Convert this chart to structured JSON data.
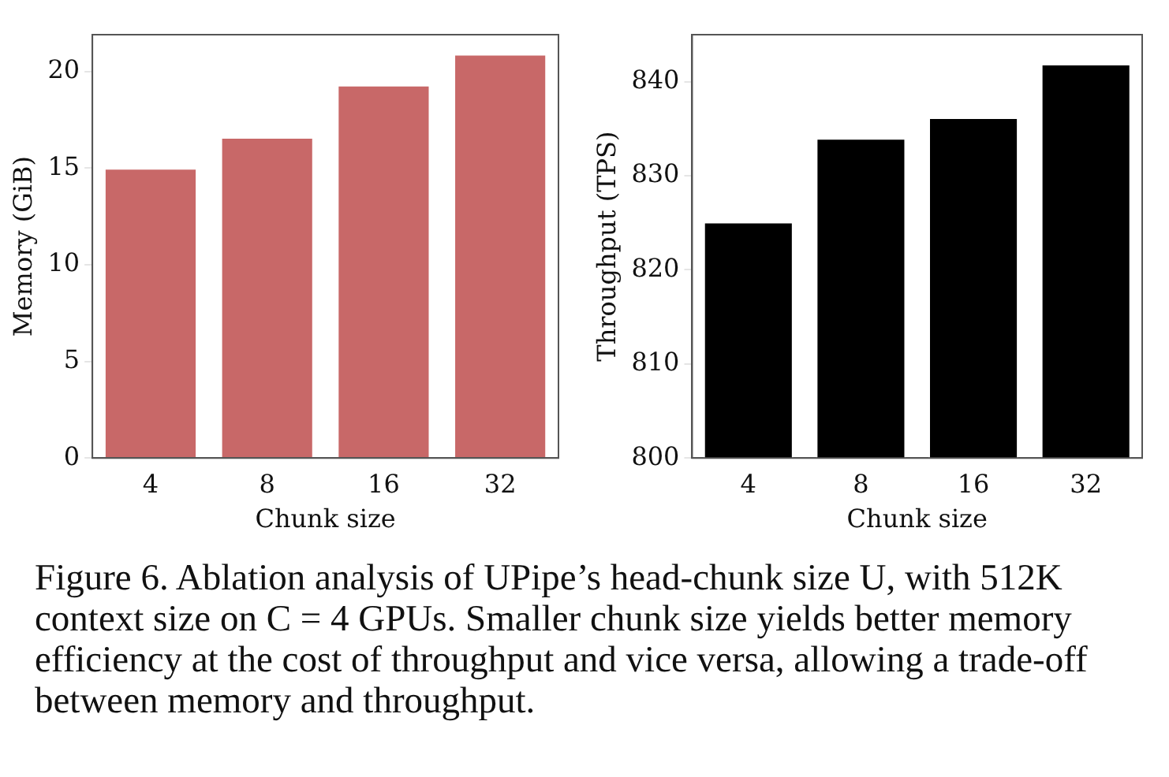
{
  "chart_data": [
    {
      "type": "bar",
      "xlabel": "Chunk size",
      "ylabel": "Memory (GiB)",
      "categories": [
        "4",
        "8",
        "16",
        "32"
      ],
      "values": [
        15.0,
        16.6,
        19.3,
        20.9
      ],
      "color": "#c86868",
      "ylim": [
        0,
        21.9
      ],
      "yticks": [
        0,
        5,
        10,
        15,
        20
      ],
      "grid": false,
      "annotations": [
        "Figure 6. Ablation analysis of UPipe’s head-chunk size U, with 512K context size on C = 4 GPUs. Smaller chunk size yields better memory efficiency at the cost of throughput and vice versa, allowing a trade-off between memory and throughput."
      ]
    },
    {
      "type": "bar",
      "xlabel": "Chunk size",
      "ylabel": "Throughput (TPS)",
      "categories": [
        "4",
        "8",
        "16",
        "32"
      ],
      "values": [
        825.1,
        834.0,
        836.2,
        841.9
      ],
      "color": "#000000",
      "ylim": [
        800,
        845
      ],
      "yticks": [
        800,
        810,
        820,
        830,
        840
      ],
      "grid": false
    }
  ]
}
